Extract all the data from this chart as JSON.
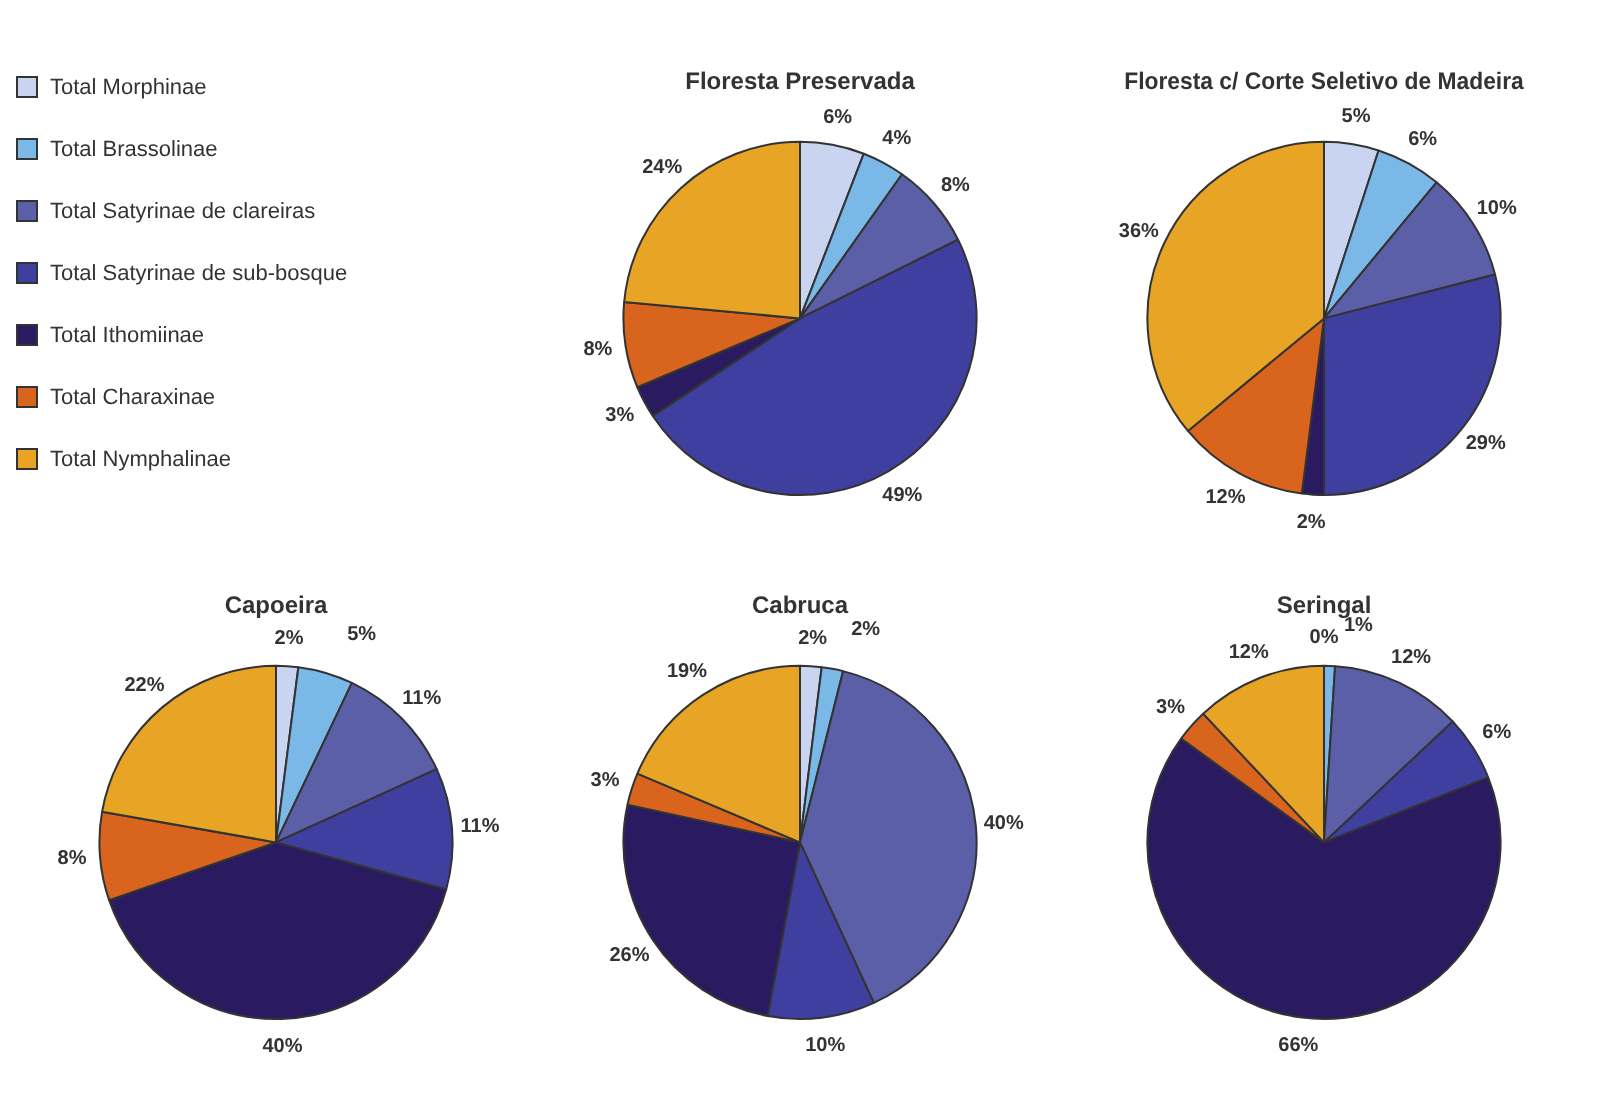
{
  "chart_data": [
    {
      "type": "pie",
      "title": "Floresta Preservada",
      "legend": "left",
      "categories": [
        "Total Morphinae",
        "Total Brassolinae",
        "Total Satyrinae de clareiras",
        "Total Satyrinae de sub-bosque",
        "Total Ithomiinae",
        "Total Charaxinae",
        "Total Nymphalinae"
      ],
      "colors": [
        "#c8d4f0",
        "#7ab8e8",
        "#5a5fa8",
        "#3f3fa0",
        "#2a1a60",
        "#d8641e",
        "#e8a424"
      ],
      "values": [
        6,
        4,
        8,
        49,
        3,
        8,
        24
      ],
      "value_labels": [
        "6%",
        "4%",
        "8%",
        "49%",
        "3%",
        "8%",
        "24%"
      ]
    },
    {
      "type": "pie",
      "title": "Floresta c/ Corte Seletivo de Madeira",
      "categories": [
        null,
        null,
        null,
        null,
        null,
        null,
        null
      ],
      "colors": [
        "#c8d4f0",
        "#7ab8e8",
        "#5a5fa8",
        "#3f3fa0",
        "#2a1a60",
        "#d8641e",
        "#e8a424"
      ],
      "values": [
        5,
        6,
        10,
        29,
        2,
        12,
        36
      ],
      "value_labels": [
        "5%",
        "6%",
        "10%",
        "29%",
        "2%",
        "12%",
        "36%"
      ]
    },
    {
      "type": "pie",
      "title": "Capoeira",
      "categories": [
        null,
        null,
        null,
        null,
        null,
        null,
        null
      ],
      "colors": [
        "#c8d4f0",
        "#7ab8e8",
        "#5a5fa8",
        "#3f3fa0",
        "#2a1a60",
        "#d8641e",
        "#e8a424"
      ],
      "values": [
        2,
        5,
        11,
        11,
        40,
        8,
        22
      ],
      "value_labels": [
        "2%",
        "5%",
        "11%",
        "11%",
        "40%",
        "8%",
        "22%"
      ]
    },
    {
      "type": "pie",
      "title": "Cabruca",
      "categories": [
        null,
        null,
        null,
        null,
        null,
        null,
        null
      ],
      "colors": [
        "#c8d4f0",
        "#7ab8e8",
        "#5a5fa8",
        "#3f3fa0",
        "#2a1a60",
        "#d8641e",
        "#e8a424"
      ],
      "values": [
        2,
        2,
        40,
        10,
        26,
        3,
        19
      ],
      "value_labels": [
        "2%",
        "2%",
        "40%",
        "10%",
        "26%",
        "3%",
        "19%"
      ]
    },
    {
      "type": "pie",
      "title": "Seringal",
      "categories": [
        null,
        null,
        null,
        null,
        null,
        null,
        null
      ],
      "colors": [
        "#c8d4f0",
        "#7ab8e8",
        "#5a5fa8",
        "#3f3fa0",
        "#2a1a60",
        "#d8641e",
        "#e8a424"
      ],
      "values": [
        0,
        1,
        12,
        6,
        66,
        3,
        12
      ],
      "value_labels": [
        "0%",
        "1%",
        "12%",
        "6%",
        "66%",
        "3%",
        "12%"
      ]
    }
  ]
}
